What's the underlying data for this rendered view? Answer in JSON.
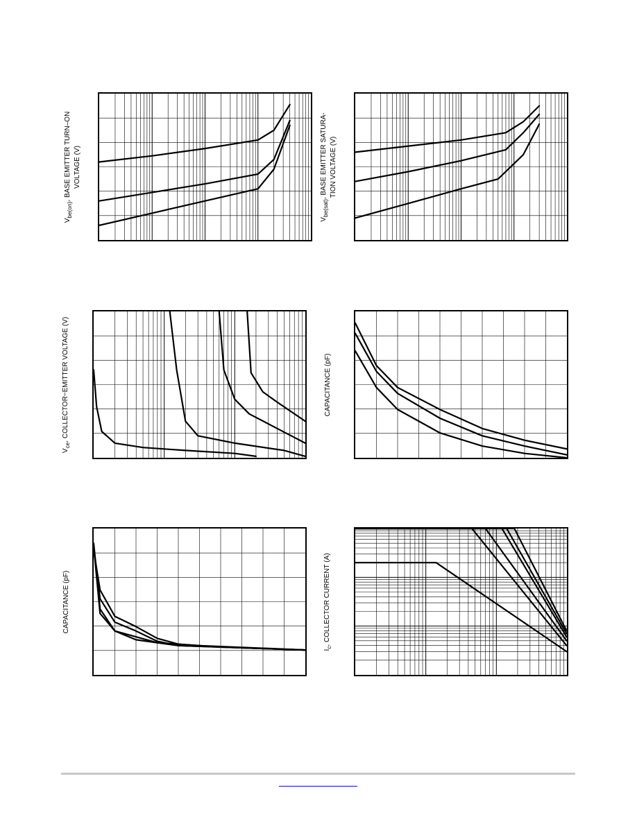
{
  "page": {
    "footer_link": ""
  },
  "chart_data": [
    {
      "type": "line",
      "ylabel_lines": [
        "V_be(on), BASE EMITTER TURN–ON",
        "VOLTAGE (V)"
      ],
      "ylabel_parts": [
        {
          "text": "V",
          "sub": "be(on)",
          "rest": ", BASE EMITTER TURN–ON"
        },
        {
          "text": "VOLTAGE (V)"
        }
      ],
      "xscale": "log",
      "yscale": "linear",
      "xlim": [
        0.1,
        1000
      ],
      "ylim": [
        0,
        1.2
      ],
      "grid": true,
      "series": [
        {
          "x": [
            0.1,
            1,
            10,
            100,
            200,
            400
          ],
          "y": [
            0.64,
            0.69,
            0.75,
            0.82,
            0.9,
            1.11
          ]
        },
        {
          "x": [
            0.1,
            1,
            10,
            100,
            200,
            400
          ],
          "y": [
            0.32,
            0.39,
            0.46,
            0.54,
            0.66,
            0.98
          ]
        },
        {
          "x": [
            0.1,
            1,
            10,
            100,
            200,
            400
          ],
          "y": [
            0.12,
            0.22,
            0.32,
            0.42,
            0.58,
            0.94
          ]
        }
      ]
    },
    {
      "type": "line",
      "ylabel_parts": [
        {
          "text": "V",
          "sub": "be(sat)",
          "rest": ", BASE EMITTER SATURA-"
        },
        {
          "text": "TION VOLTAGE (V)"
        }
      ],
      "xscale": "log",
      "yscale": "linear",
      "xlim": [
        0.1,
        1000
      ],
      "ylim": [
        0,
        1.2
      ],
      "grid": true,
      "series": [
        {
          "x": [
            0.1,
            1,
            10,
            70,
            150,
            300
          ],
          "y": [
            0.72,
            0.77,
            0.82,
            0.88,
            0.97,
            1.1
          ]
        },
        {
          "x": [
            0.1,
            1,
            10,
            70,
            150,
            300
          ],
          "y": [
            0.48,
            0.56,
            0.65,
            0.74,
            0.88,
            1.03
          ]
        },
        {
          "x": [
            0.1,
            1,
            10,
            50,
            150,
            300
          ],
          "y": [
            0.18,
            0.3,
            0.42,
            0.5,
            0.7,
            0.95
          ]
        }
      ]
    },
    {
      "type": "line",
      "ylabel_parts": [
        {
          "text": "V",
          "sub": "ce",
          "rest": ", COLLECTOR−EMITTER VOLTAGE (V)"
        }
      ],
      "xscale": "log",
      "yscale": "linear",
      "xlim": [
        0.01,
        10
      ],
      "ylim": [
        0,
        1
      ],
      "grid": true,
      "series": [
        {
          "x": [
            0.01,
            0.011,
            0.013,
            0.02,
            0.05,
            0.2,
            1,
            2
          ],
          "y": [
            0.6,
            0.35,
            0.18,
            0.1,
            0.07,
            0.05,
            0.03,
            0.01
          ]
        },
        {
          "x": [
            0.12,
            0.15,
            0.2,
            0.3,
            1,
            5,
            10
          ],
          "y": [
            1,
            0.6,
            0.25,
            0.15,
            0.1,
            0.05,
            0.01
          ]
        },
        {
          "x": [
            0.6,
            0.7,
            1,
            1.6,
            4,
            10
          ],
          "y": [
            1,
            0.6,
            0.4,
            0.3,
            0.2,
            0.1
          ]
        },
        {
          "x": [
            1.5,
            1.7,
            2.5,
            4,
            10
          ],
          "y": [
            1,
            0.58,
            0.45,
            0.38,
            0.25
          ]
        }
      ]
    },
    {
      "type": "line",
      "ylabel_parts": [
        {
          "text": "CAPACITANCE (pF)"
        }
      ],
      "xscale": "linear",
      "yscale": "linear",
      "xlim": [
        0,
        10
      ],
      "ylim": [
        0,
        1
      ],
      "grid": true,
      "series": [
        {
          "x": [
            0,
            1,
            2,
            4,
            6,
            8,
            10
          ],
          "y": [
            0.92,
            0.63,
            0.48,
            0.33,
            0.2,
            0.12,
            0.06
          ]
        },
        {
          "x": [
            0,
            1,
            2,
            4,
            6,
            8,
            10
          ],
          "y": [
            0.85,
            0.59,
            0.44,
            0.27,
            0.15,
            0.08,
            0.02
          ]
        },
        {
          "x": [
            0,
            1,
            2,
            4,
            6,
            8,
            10
          ],
          "y": [
            0.73,
            0.48,
            0.33,
            0.17,
            0.08,
            0.03,
            0.0
          ]
        }
      ]
    },
    {
      "type": "line",
      "ylabel_parts": [
        {
          "text": "CAPACITANCE (pF)"
        }
      ],
      "xscale": "linear",
      "yscale": "linear",
      "xlim": [
        0,
        10
      ],
      "ylim": [
        0,
        1
      ],
      "grid": true,
      "series": [
        {
          "x": [
            0,
            0.3,
            1,
            2,
            3,
            4,
            6,
            8,
            10
          ],
          "y": [
            0.85,
            0.58,
            0.4,
            0.33,
            0.25,
            0.21,
            0.19,
            0.18,
            0.17
          ]
        },
        {
          "x": [
            0,
            0.3,
            1,
            2,
            3,
            4,
            6,
            8,
            10
          ],
          "y": [
            0.88,
            0.52,
            0.36,
            0.3,
            0.23,
            0.2,
            0.19,
            0.18,
            0.17
          ]
        },
        {
          "x": [
            0,
            0.3,
            1,
            2,
            3,
            4,
            6,
            8,
            10
          ],
          "y": [
            0.9,
            0.45,
            0.3,
            0.24,
            0.22,
            0.2,
            0.19,
            0.18,
            0.17
          ]
        },
        {
          "x": [
            0,
            0.3,
            1,
            3,
            5,
            10
          ],
          "y": [
            0.88,
            0.42,
            0.3,
            0.22,
            0.2,
            0.17
          ]
        }
      ]
    },
    {
      "type": "line",
      "ylabel_parts": [
        {
          "text": "I",
          "sub": "c",
          "rest": ", COLLECTOR CURRENT (A)"
        }
      ],
      "xscale": "log",
      "yscale": "log",
      "xlim": [
        1,
        1000
      ],
      "ylim": [
        0.001,
        1
      ],
      "grid": true,
      "series": [
        {
          "x": [
            1,
            14,
            990
          ],
          "y": [
            0.2,
            0.2,
            0.003
          ]
        },
        {
          "x": [
            1,
            45,
            990
          ],
          "y": [
            1,
            1,
            0.004
          ]
        },
        {
          "x": [
            1,
            70,
            990
          ],
          "y": [
            1,
            1,
            0.005
          ]
        },
        {
          "x": [
            1,
            120,
            990
          ],
          "y": [
            1,
            1,
            0.006
          ]
        },
        {
          "x": [
            1,
            140,
            990
          ],
          "y": [
            1,
            1,
            0.007
          ]
        },
        {
          "x": [
            1,
            180,
            990
          ],
          "y": [
            1,
            1,
            0.008
          ]
        }
      ]
    }
  ]
}
